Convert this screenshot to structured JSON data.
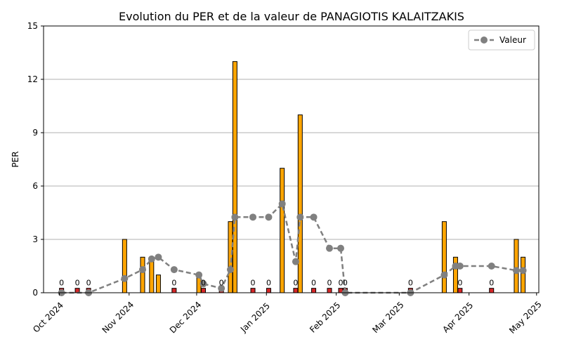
{
  "chart_data": {
    "type": "bar",
    "title": "Evolution du PER et de la valeur de PANAGIOTIS KALAITZAKIS",
    "xlabel": "",
    "ylabel": "PER",
    "ylim": [
      0,
      15
    ],
    "yticks": [
      0,
      3,
      6,
      9,
      12,
      15
    ],
    "xlim": [
      "2024-09-24",
      "2025-05-02"
    ],
    "xticks": [
      {
        "date": "2024-10-01",
        "label": "Oct 2024"
      },
      {
        "date": "2024-11-01",
        "label": "Nov 2024"
      },
      {
        "date": "2024-12-01",
        "label": "Dec 2024"
      },
      {
        "date": "2025-01-01",
        "label": "Jan 2025"
      },
      {
        "date": "2025-02-01",
        "label": "Feb 2025"
      },
      {
        "date": "2025-03-01",
        "label": "Mar 2025"
      },
      {
        "date": "2025-04-01",
        "label": "Apr 2025"
      },
      {
        "date": "2025-05-01",
        "label": "May 2025"
      }
    ],
    "grid": "horizontal",
    "legend_position": "top-right",
    "colors": {
      "positive": "#FFA500",
      "zero": "#D62728",
      "valeur": "#808080",
      "edge": "#000000"
    },
    "bars": [
      {
        "date": "2024-10-02",
        "per": 0
      },
      {
        "date": "2024-10-09",
        "per": 0
      },
      {
        "date": "2024-10-14",
        "per": 0
      },
      {
        "date": "2024-10-30",
        "per": 3
      },
      {
        "date": "2024-11-07",
        "per": 2
      },
      {
        "date": "2024-11-11",
        "per": 2
      },
      {
        "date": "2024-11-14",
        "per": 1
      },
      {
        "date": "2024-11-21",
        "per": 0
      },
      {
        "date": "2024-12-02",
        "per": 1
      },
      {
        "date": "2024-12-04",
        "per": 0
      },
      {
        "date": "2024-12-12",
        "per": 0
      },
      {
        "date": "2024-12-16",
        "per": 4
      },
      {
        "date": "2024-12-18",
        "per": 13
      },
      {
        "date": "2024-12-26",
        "per": 0
      },
      {
        "date": "2025-01-02",
        "per": 0
      },
      {
        "date": "2025-01-08",
        "per": 7
      },
      {
        "date": "2025-01-14",
        "per": 0
      },
      {
        "date": "2025-01-16",
        "per": 10
      },
      {
        "date": "2025-01-22",
        "per": 0
      },
      {
        "date": "2025-01-29",
        "per": 0
      },
      {
        "date": "2025-02-03",
        "per": 0
      },
      {
        "date": "2025-02-05",
        "per": 0
      },
      {
        "date": "2025-03-06",
        "per": 0
      },
      {
        "date": "2025-03-21",
        "per": 4
      },
      {
        "date": "2025-03-26",
        "per": 2
      },
      {
        "date": "2025-03-28",
        "per": 0
      },
      {
        "date": "2025-04-11",
        "per": 0
      },
      {
        "date": "2025-04-22",
        "per": 3
      },
      {
        "date": "2025-04-25",
        "per": 2
      }
    ],
    "series": [
      {
        "name": "Valeur",
        "points": [
          {
            "date": "2024-10-02",
            "y": 0
          },
          {
            "date": "2024-10-14",
            "y": 0
          },
          {
            "date": "2024-10-30",
            "y": 0.8
          },
          {
            "date": "2024-11-07",
            "y": 1.3
          },
          {
            "date": "2024-11-11",
            "y": 1.9
          },
          {
            "date": "2024-11-14",
            "y": 2.0
          },
          {
            "date": "2024-11-21",
            "y": 1.3
          },
          {
            "date": "2024-12-02",
            "y": 1.0
          },
          {
            "date": "2024-12-04",
            "y": 0.5
          },
          {
            "date": "2024-12-12",
            "y": 0.25
          },
          {
            "date": "2024-12-16",
            "y": 1.3
          },
          {
            "date": "2024-12-18",
            "y": 4.25
          },
          {
            "date": "2024-12-26",
            "y": 4.25
          },
          {
            "date": "2025-01-02",
            "y": 4.25
          },
          {
            "date": "2025-01-08",
            "y": 5.0
          },
          {
            "date": "2025-01-14",
            "y": 1.75
          },
          {
            "date": "2025-01-16",
            "y": 4.25
          },
          {
            "date": "2025-01-22",
            "y": 4.25
          },
          {
            "date": "2025-01-29",
            "y": 2.5
          },
          {
            "date": "2025-02-03",
            "y": 2.5
          },
          {
            "date": "2025-02-05",
            "y": 0
          },
          {
            "date": "2025-03-06",
            "y": 0
          },
          {
            "date": "2025-03-21",
            "y": 1.0
          },
          {
            "date": "2025-03-26",
            "y": 1.5
          },
          {
            "date": "2025-03-28",
            "y": 1.5
          },
          {
            "date": "2025-04-11",
            "y": 1.5
          },
          {
            "date": "2025-04-22",
            "y": 1.25
          },
          {
            "date": "2025-04-25",
            "y": 1.25
          }
        ]
      }
    ]
  }
}
